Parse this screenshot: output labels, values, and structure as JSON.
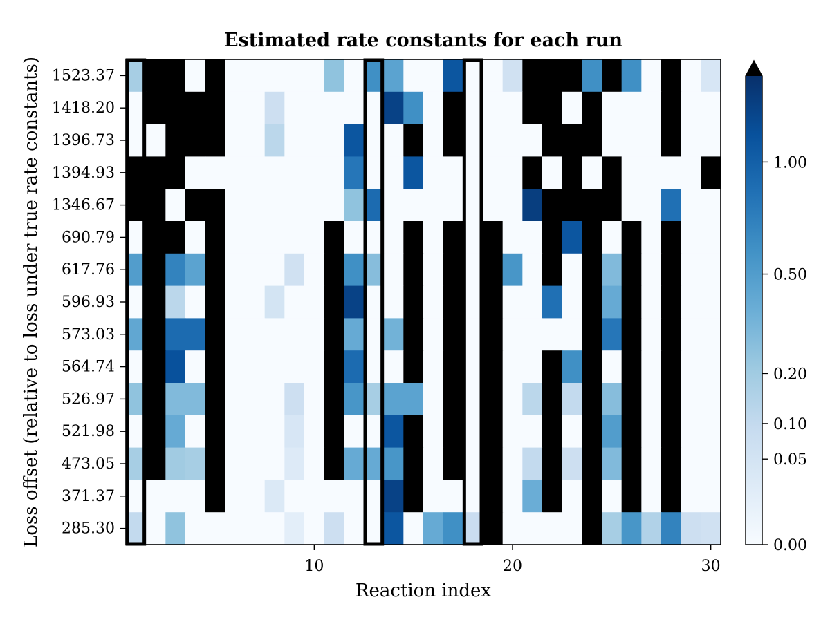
{
  "chart_data": {
    "type": "heatmap",
    "title": "Estimated rate constants for each run",
    "xlabel": "Reaction index",
    "ylabel": "Loss offset (relative to loss under true rate constants)",
    "x_ticks": [
      10,
      20,
      30
    ],
    "x_range": [
      0.5,
      30.5
    ],
    "y_labels": [
      "1523.37",
      "1418.20",
      "1396.73",
      "1394.93",
      "1346.67",
      "690.79",
      "617.76",
      "596.93",
      "573.03",
      "564.74",
      "526.97",
      "521.98",
      "473.05",
      "371.37",
      "285.30"
    ],
    "colorbar": {
      "colormap": "Blues",
      "ticks": [
        0.0,
        0.05,
        0.1,
        0.2,
        0.5,
        1.0
      ],
      "tick_labels": [
        "0.00",
        "0.05",
        "0.10",
        "0.20",
        "0.50",
        "1.00"
      ],
      "vmax": 1.5,
      "extend": "max",
      "over_color": "#000000"
    },
    "highlighted_columns": [
      1,
      13,
      18
    ],
    "grid": false,
    "values": [
      [
        0.18,
        2,
        2,
        0,
        2,
        0,
        0,
        0,
        0,
        0,
        0.25,
        0,
        0.6,
        0.45,
        0,
        0,
        1.1,
        0,
        0,
        0.06,
        2,
        2,
        2,
        0.6,
        2,
        0.6,
        0,
        2,
        0,
        0.04
      ],
      [
        0,
        2,
        2,
        2,
        2,
        0,
        0,
        0.07,
        0,
        0,
        0,
        0,
        0,
        1.3,
        0.6,
        0,
        2,
        0,
        0,
        0,
        2,
        2,
        0,
        2,
        0,
        0,
        0,
        2,
        0,
        0
      ],
      [
        0,
        0,
        2,
        2,
        2,
        0,
        0,
        0.12,
        0,
        0,
        0,
        1.1,
        0,
        0,
        2,
        0,
        2,
        0,
        0,
        0,
        0,
        2,
        2,
        2,
        0,
        0,
        0,
        2,
        0,
        0
      ],
      [
        2,
        2,
        2,
        0,
        0,
        0,
        0,
        0,
        0,
        0,
        0,
        0.8,
        0,
        0,
        1.1,
        0,
        0,
        0,
        0,
        0,
        2,
        0,
        2,
        0,
        2,
        0,
        0,
        0,
        0,
        2
      ],
      [
        2,
        2,
        0,
        2,
        2,
        0,
        0,
        0,
        0,
        0,
        0,
        0.25,
        0.9,
        0,
        0,
        0,
        0,
        0,
        0,
        0,
        1.35,
        2,
        2,
        2,
        2,
        0,
        0,
        0.85,
        0,
        0
      ],
      [
        0,
        2,
        2,
        0,
        2,
        0,
        0,
        0,
        0,
        0,
        2,
        0,
        0,
        0,
        2,
        0,
        2,
        0,
        2,
        0,
        0,
        2,
        1.1,
        2,
        0,
        2,
        0,
        2,
        0,
        0
      ],
      [
        0.5,
        2,
        0.7,
        0.45,
        2,
        0,
        0,
        0,
        0.06,
        0,
        2,
        0.6,
        0.28,
        0,
        2,
        0,
        2,
        0,
        2,
        0.55,
        0,
        2,
        0,
        2,
        0.3,
        2,
        0,
        2,
        0,
        0
      ],
      [
        0,
        2,
        0.12,
        0,
        2,
        0,
        0,
        0.05,
        0,
        0,
        2,
        1.3,
        0,
        0,
        2,
        0,
        2,
        0,
        2,
        0,
        0,
        0.85,
        0,
        2,
        0.4,
        2,
        0,
        2,
        0,
        0
      ],
      [
        0.42,
        2,
        0.9,
        0.9,
        2,
        0,
        0,
        0,
        0,
        0,
        2,
        0.4,
        0,
        0.35,
        2,
        0,
        2,
        0,
        2,
        0,
        0,
        0,
        0,
        2,
        0.8,
        2,
        0,
        2,
        0,
        0
      ],
      [
        0,
        2,
        1.15,
        0,
        2,
        0,
        0,
        0,
        0,
        0,
        2,
        0.9,
        0,
        0,
        2,
        0,
        2,
        0,
        2,
        0,
        0,
        2,
        0.6,
        2,
        0,
        2,
        0,
        2,
        0,
        0
      ],
      [
        0.25,
        2,
        0.3,
        0.3,
        2,
        0,
        0,
        0,
        0.07,
        0,
        2,
        0.55,
        0.18,
        0.45,
        0.45,
        0,
        2,
        0,
        2,
        0,
        0.12,
        2,
        0.1,
        2,
        0.28,
        2,
        0,
        2,
        0,
        0
      ],
      [
        0,
        2,
        0.4,
        0,
        2,
        0,
        0,
        0,
        0.04,
        0,
        2,
        0,
        0,
        1.1,
        2,
        0,
        2,
        0,
        2,
        0,
        0,
        2,
        0,
        2,
        0.5,
        2,
        0,
        2,
        0,
        0
      ],
      [
        0.18,
        2,
        0.2,
        0.18,
        2,
        0,
        0,
        0,
        0.025,
        0,
        2,
        0.4,
        0.4,
        0.55,
        2,
        0,
        2,
        0,
        2,
        0,
        0.1,
        2,
        0.07,
        2,
        0.3,
        2,
        0,
        2,
        0,
        0
      ],
      [
        0,
        0,
        0,
        0,
        2,
        0,
        0,
        0.03,
        0,
        0,
        0,
        0,
        0,
        1.3,
        2,
        0,
        0,
        0,
        2,
        0,
        0.38,
        2,
        0,
        2,
        0,
        2,
        0,
        2,
        0,
        0
      ],
      [
        0.1,
        0,
        0.25,
        0,
        0,
        0,
        0,
        0,
        0.015,
        0,
        0.07,
        0,
        0,
        1.1,
        0,
        0.4,
        0.6,
        0.08,
        2,
        0,
        0,
        0,
        0,
        2,
        0.18,
        0.55,
        0.15,
        0.7,
        0.07,
        0.06
      ]
    ]
  }
}
